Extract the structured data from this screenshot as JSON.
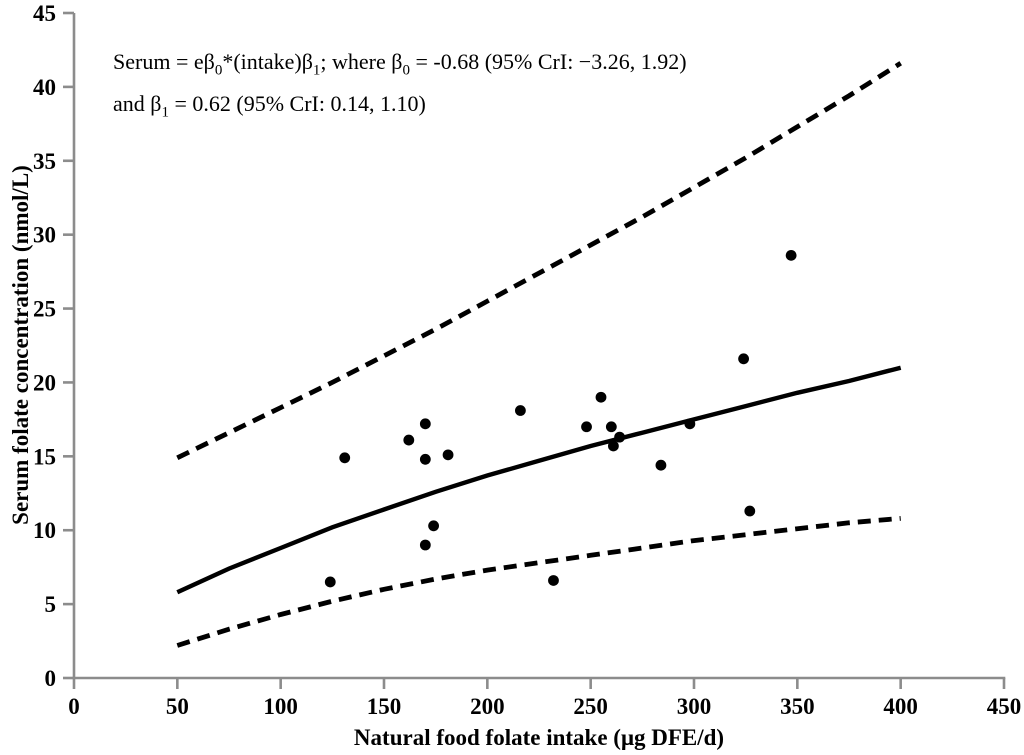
{
  "chart_data": {
    "type": "scatter",
    "title": "",
    "xlabel": "Natural food folate intake (μg DFE/d)",
    "ylabel": "Serum folate concentration (nmol/L)",
    "xlim": [
      0,
      450
    ],
    "ylim": [
      0,
      45
    ],
    "xticks": [
      0,
      50,
      100,
      150,
      200,
      250,
      300,
      350,
      400,
      450
    ],
    "yticks": [
      0,
      5,
      10,
      15,
      20,
      25,
      30,
      35,
      40,
      45
    ],
    "grid": false,
    "legend": "none",
    "annotation": {
      "lines": [
        [
          {
            "t": "Serum = eβ"
          },
          {
            "t": "0",
            "sub": true
          },
          {
            "t": "*(intake)β"
          },
          {
            "t": "1",
            "sub": true
          },
          {
            "t": "; where β"
          },
          {
            "t": "0",
            "sub": true
          },
          {
            "t": " = -0.68 (95% CrI: −3.26, 1.92)"
          }
        ],
        [
          {
            "t": "and β"
          },
          {
            "t": "1",
            "sub": true
          },
          {
            "t": " = 0.62 (95% CrI: 0.14, 1.10)"
          }
        ]
      ]
    },
    "model": {
      "beta0": -0.68,
      "beta0_cri_95": [
        -3.26,
        1.92
      ],
      "beta1": 0.62,
      "beta1_cri_95": [
        0.14,
        1.1
      ]
    },
    "series": [
      {
        "name": "observed-points",
        "kind": "scatter",
        "points": [
          [
            124,
            6.5
          ],
          [
            131,
            14.9
          ],
          [
            162,
            16.1
          ],
          [
            170,
            17.2
          ],
          [
            170,
            14.8
          ],
          [
            170,
            9.0
          ],
          [
            174,
            10.3
          ],
          [
            181,
            15.1
          ],
          [
            216,
            18.1
          ],
          [
            232,
            6.6
          ],
          [
            248,
            17.0
          ],
          [
            255,
            19.0
          ],
          [
            260,
            17.0
          ],
          [
            261,
            15.7
          ],
          [
            264,
            16.3
          ],
          [
            284,
            14.4
          ],
          [
            298,
            17.2
          ],
          [
            324,
            21.6
          ],
          [
            327,
            11.3
          ],
          [
            347,
            28.6
          ]
        ]
      },
      {
        "name": "fitted-curve",
        "kind": "line",
        "style": "solid",
        "x": [
          50,
          75,
          100,
          125,
          150,
          175,
          200,
          225,
          250,
          275,
          300,
          325,
          350,
          375,
          400
        ],
        "y": [
          5.8,
          7.4,
          8.8,
          10.2,
          11.4,
          12.6,
          13.7,
          14.7,
          15.7,
          16.6,
          17.5,
          18.4,
          19.3,
          20.1,
          21.0
        ]
      },
      {
        "name": "upper-95-cri-curve",
        "kind": "line",
        "style": "dashed",
        "x": [
          50,
          75,
          100,
          125,
          150,
          175,
          200,
          225,
          250,
          275,
          300,
          325,
          350,
          375,
          400
        ],
        "y": [
          14.9,
          16.6,
          18.3,
          20.0,
          21.8,
          23.6,
          25.5,
          27.4,
          29.3,
          31.2,
          33.2,
          35.2,
          37.3,
          39.4,
          41.6
        ]
      },
      {
        "name": "lower-95-cri-curve",
        "kind": "line",
        "style": "dashed",
        "x": [
          50,
          75,
          100,
          125,
          150,
          175,
          200,
          225,
          250,
          275,
          300,
          325,
          350,
          375,
          400
        ],
        "y": [
          2.2,
          3.3,
          4.3,
          5.2,
          6.0,
          6.7,
          7.3,
          7.8,
          8.3,
          8.8,
          9.3,
          9.7,
          10.1,
          10.5,
          10.8
        ]
      }
    ],
    "colors": {
      "points": "#000000",
      "fitted": "#000000",
      "ci": "#000000",
      "axis": "#8c8c8c",
      "text": "#000000",
      "background": "#ffffff"
    }
  }
}
